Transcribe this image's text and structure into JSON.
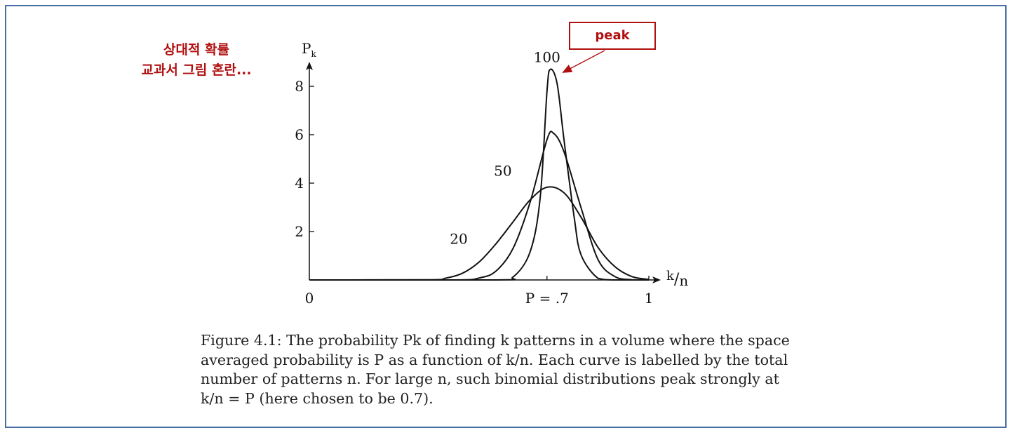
{
  "annotation": {
    "note_line1": "상대적 확률",
    "note_line2": "교과서 그림 혼란...",
    "peak_label": "peak",
    "accent_color": "#b01010"
  },
  "caption": {
    "line1": "Figure 4.1: The probability Pk of finding k patterns in a volume where the space",
    "line2": "averaged probability is P as a function of k/n. Each curve is labelled by the total",
    "line3": "number of patterns n.  For large n, such binomial distributions peak strongly at",
    "line4": "k/n = P (here chosen to be 0.7)."
  },
  "chart_data": {
    "type": "line",
    "ylabel": "Pk",
    "xlabel": "k/n",
    "xlim": [
      0,
      1
    ],
    "ylim": [
      0,
      9
    ],
    "y_ticks": [
      2,
      4,
      6,
      8
    ],
    "x_tick_labels": [
      {
        "x": 0,
        "label": "0"
      },
      {
        "x": 0.7,
        "label": "P = .7"
      },
      {
        "x": 1,
        "label": "1"
      }
    ],
    "grid": false,
    "series": [
      {
        "name": "20",
        "label_pos": [
          0.44,
          1.5
        ],
        "points": [
          [
            0,
            0
          ],
          [
            0.35,
            0.01
          ],
          [
            0.4,
            0.07
          ],
          [
            0.45,
            0.27
          ],
          [
            0.5,
            0.74
          ],
          [
            0.55,
            1.5
          ],
          [
            0.6,
            2.4
          ],
          [
            0.65,
            3.3
          ],
          [
            0.7,
            3.83
          ],
          [
            0.75,
            3.6
          ],
          [
            0.8,
            2.6
          ],
          [
            0.85,
            1.35
          ],
          [
            0.9,
            0.55
          ],
          [
            0.95,
            0.14
          ],
          [
            1,
            0.02
          ]
        ]
      },
      {
        "name": "50",
        "label_pos": [
          0.57,
          4.3
        ],
        "points": [
          [
            0,
            0
          ],
          [
            0.42,
            0
          ],
          [
            0.5,
            0.08
          ],
          [
            0.55,
            0.37
          ],
          [
            0.6,
            1.3
          ],
          [
            0.65,
            3.2
          ],
          [
            0.7,
            5.8
          ],
          [
            0.72,
            6.05
          ],
          [
            0.75,
            5.3
          ],
          [
            0.8,
            3.0
          ],
          [
            0.85,
            0.85
          ],
          [
            0.9,
            0.14
          ],
          [
            0.95,
            0.01
          ],
          [
            1,
            0
          ]
        ]
      },
      {
        "name": "100",
        "label_pos": [
          0.7,
          9.0
        ],
        "points": [
          [
            0,
            0
          ],
          [
            0.55,
            0
          ],
          [
            0.6,
            0.12
          ],
          [
            0.65,
            1.15
          ],
          [
            0.68,
            3.4
          ],
          [
            0.7,
            7.8
          ],
          [
            0.71,
            8.7
          ],
          [
            0.73,
            8.1
          ],
          [
            0.75,
            5.8
          ],
          [
            0.78,
            2.6
          ],
          [
            0.8,
            1.05
          ],
          [
            0.85,
            0.07
          ],
          [
            0.9,
            0
          ],
          [
            1,
            0
          ]
        ]
      }
    ]
  }
}
